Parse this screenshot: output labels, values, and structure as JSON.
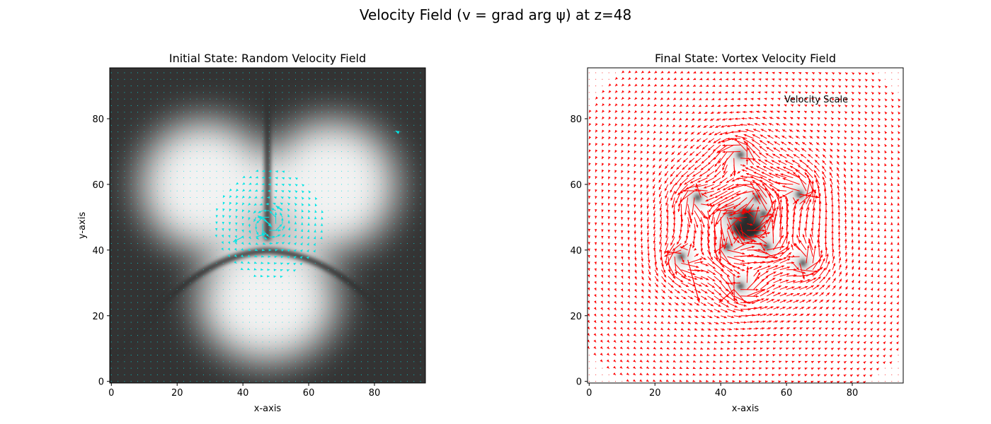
{
  "figure": {
    "title": "Velocity Field (v = grad arg ψ) at z=48"
  },
  "chart_data": [
    {
      "type": "quiver",
      "title": "Initial State: Random Velocity Field",
      "xlabel": "x-axis",
      "ylabel": "y-axis",
      "xlim": [
        -0.5,
        95.5
      ],
      "ylim": [
        -0.5,
        95.5
      ],
      "x_ticks": [
        0,
        20,
        40,
        60,
        80
      ],
      "y_ticks": [
        0,
        20,
        40,
        60,
        80
      ],
      "background": "grayscale density |ψ|: three bright lobes centred near (30,63), (68,63), (48,28) on a dark field",
      "arrow_color": "#00e5e5",
      "grid": false,
      "vortices": [
        {
          "x": 48,
          "y": 48,
          "circulation": "counter-clockwise"
        }
      ],
      "sample_arrows": [
        {
          "x": 48,
          "y": 48,
          "u": -3.5,
          "v": 2.5
        },
        {
          "x": 46,
          "y": 50,
          "u": 2.8,
          "v": -3.0
        },
        {
          "x": 44,
          "y": 44,
          "u": 3.0,
          "v": 1.0
        },
        {
          "x": 52,
          "y": 52,
          "u": -2.0,
          "v": 1.5
        },
        {
          "x": 40,
          "y": 44,
          "u": -3.0,
          "v": -1.5
        },
        {
          "x": 87,
          "y": 76,
          "u": -0.6,
          "v": 0.3
        }
      ]
    },
    {
      "type": "quiver",
      "title": "Final State: Vortex Velocity Field",
      "xlabel": "x-axis",
      "ylabel": "",
      "xlim": [
        -0.5,
        95.5
      ],
      "ylim": [
        -0.5,
        95.5
      ],
      "x_ticks": [
        0,
        20,
        40,
        60,
        80
      ],
      "y_ticks": [
        0,
        20,
        40,
        60,
        80
      ],
      "background": "grayscale density: white field with dark vortex cores",
      "arrow_color": "#ff0000",
      "grid": false,
      "annotation": "Velocity Scale",
      "vortices": [
        {
          "x": 48,
          "y": 48,
          "size": "large",
          "circulation": "counter-clockwise"
        },
        {
          "x": 46,
          "y": 69
        },
        {
          "x": 33,
          "y": 56
        },
        {
          "x": 64,
          "y": 57
        },
        {
          "x": 28,
          "y": 38
        },
        {
          "x": 65,
          "y": 36
        },
        {
          "x": 46,
          "y": 29
        },
        {
          "x": 42,
          "y": 41
        },
        {
          "x": 54,
          "y": 41
        },
        {
          "x": 43,
          "y": 51
        },
        {
          "x": 53,
          "y": 51
        },
        {
          "x": 51,
          "y": 56
        }
      ],
      "sample_arrows": [
        {
          "x": 30,
          "y": 37,
          "u": 3.5,
          "v": -13.0
        },
        {
          "x": 44,
          "y": 28,
          "u": -4.5,
          "v": -4.0
        },
        {
          "x": 64,
          "y": 57,
          "u": 6.0,
          "v": -1.0
        },
        {
          "x": 28,
          "y": 39,
          "u": -5.0,
          "v": 0.5
        }
      ]
    }
  ]
}
